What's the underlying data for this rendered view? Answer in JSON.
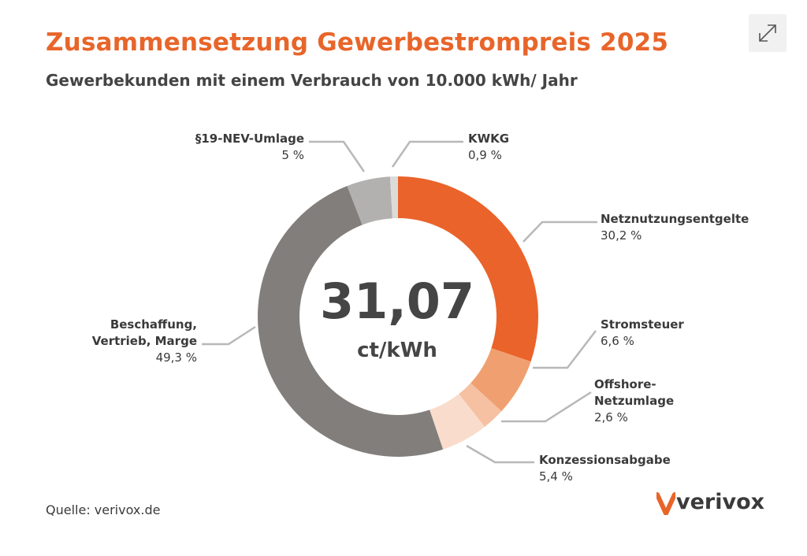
{
  "header": {
    "title": "Zusammensetzung Gewerbestrompreis 2025",
    "subtitle": "Gewerbekunden mit einem Verbrauch von 10.000 kWh/ Jahr"
  },
  "center": {
    "value": "31,07",
    "unit": "ct/kWh"
  },
  "labels": {
    "netz": {
      "name": "Netznutzungsentgelte",
      "pct": "30,2 %"
    },
    "strom": {
      "name": "Stromsteuer",
      "pct": "6,6 %"
    },
    "offshore1": "Offshore-",
    "offshore2": "Netzumlage",
    "offshore_pct": "2,6 %",
    "konz": {
      "name": "Konzessionsabgabe",
      "pct": "5,4 %"
    },
    "besch1": "Beschaffung,",
    "besch2": "Vertrieb, Marge",
    "besch_pct": "49,3 %",
    "nev": {
      "name": "§19-NEV-Umlage",
      "pct": "5 %"
    },
    "kwkg": {
      "name": "KWKG",
      "pct": "0,9 %"
    }
  },
  "footer": {
    "source": "Quelle: verivox.de",
    "logo": "verivox"
  },
  "icons": {
    "expand": "expand-icon"
  },
  "chart_data": {
    "type": "pie",
    "variant": "donut",
    "center_value": 31.07,
    "center_unit": "ct/kWh",
    "slices": [
      {
        "name": "Netznutzungsentgelte",
        "value": 30.2,
        "color": "#ea632b"
      },
      {
        "name": "Stromsteuer",
        "value": 6.6,
        "color": "#f0a070"
      },
      {
        "name": "Offshore-Netzumlage",
        "value": 2.6,
        "color": "#f5c1a2"
      },
      {
        "name": "Konzessionsabgabe",
        "value": 5.4,
        "color": "#f9dccb"
      },
      {
        "name": "Beschaffung, Vertrieb, Marge",
        "value": 49.3,
        "color": "#827e7b"
      },
      {
        "name": "§19-NEV-Umlage",
        "value": 5.0,
        "color": "#b3b1af"
      },
      {
        "name": "KWKG",
        "value": 0.9,
        "color": "#dcdbd9"
      }
    ],
    "connector_color": "#b8b8b8"
  }
}
